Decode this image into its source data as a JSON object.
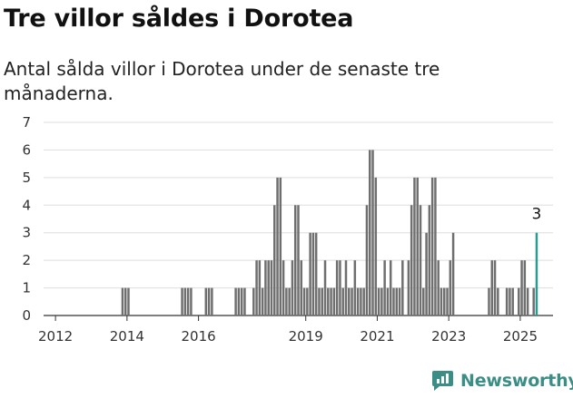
{
  "title": "Tre villor såldes i Dorotea",
  "subtitle": "Antal sålda villor i Dorotea under de senaste tre månaderna.",
  "brand": "Newsworthy",
  "colors": {
    "bar": "#6f6f6f",
    "highlight": "#2a9c8f",
    "grid": "#dddddd",
    "brand": "#3a8e86"
  },
  "chart_data": {
    "type": "bar",
    "title": "Tre villor såldes i Dorotea",
    "subtitle": "Antal sålda villor i Dorotea under de senaste tre månaderna.",
    "xlabel": "",
    "ylabel": "",
    "ylim": [
      0,
      7
    ],
    "yticks": [
      0,
      1,
      2,
      3,
      4,
      5,
      6,
      7
    ],
    "xlim": [
      "2011-09",
      "2025-12"
    ],
    "xticks": [
      "2012",
      "2014",
      "2016",
      "2019",
      "2021",
      "2023",
      "2025"
    ],
    "grid": true,
    "value_label": {
      "x": "2025-06",
      "text": "3"
    },
    "series": [
      {
        "x": [
          "2013-11",
          "2013-12",
          "2014-01",
          "2015-07",
          "2015-08",
          "2015-09",
          "2015-10",
          "2016-03",
          "2016-04",
          "2016-05",
          "2017-01",
          "2017-02",
          "2017-03",
          "2017-04",
          "2017-07",
          "2017-08",
          "2017-09",
          "2017-10",
          "2017-11",
          "2017-12",
          "2018-01",
          "2018-02",
          "2018-03",
          "2018-04",
          "2018-05",
          "2018-06",
          "2018-07",
          "2018-08",
          "2018-09",
          "2018-10",
          "2018-11",
          "2018-12",
          "2019-01",
          "2019-02",
          "2019-03",
          "2019-04",
          "2019-05",
          "2019-06",
          "2019-07",
          "2019-08",
          "2019-09",
          "2019-10",
          "2019-11",
          "2019-12",
          "2020-01",
          "2020-02",
          "2020-03",
          "2020-04",
          "2020-05",
          "2020-06",
          "2020-07",
          "2020-08",
          "2020-09",
          "2020-10",
          "2020-11",
          "2020-12",
          "2021-01",
          "2021-02",
          "2021-03",
          "2021-04",
          "2021-05",
          "2021-06",
          "2021-07",
          "2021-08",
          "2021-09",
          "2021-11",
          "2021-12",
          "2022-01",
          "2022-02",
          "2022-03",
          "2022-04",
          "2022-05",
          "2022-06",
          "2022-07",
          "2022-08",
          "2022-09",
          "2022-10",
          "2022-11",
          "2022-12",
          "2023-01",
          "2023-02",
          "2024-02",
          "2024-03",
          "2024-04",
          "2024-05",
          "2024-08",
          "2024-09",
          "2024-10",
          "2024-12",
          "2025-01",
          "2025-02",
          "2025-03",
          "2025-05",
          "2025-06"
        ],
        "values": [
          1,
          1,
          1,
          1,
          1,
          1,
          1,
          1,
          1,
          1,
          1,
          1,
          1,
          1,
          1,
          2,
          2,
          1,
          2,
          2,
          2,
          4,
          5,
          5,
          2,
          1,
          1,
          2,
          4,
          4,
          2,
          1,
          1,
          3,
          3,
          3,
          1,
          1,
          2,
          1,
          1,
          1,
          2,
          2,
          1,
          2,
          1,
          1,
          2,
          1,
          1,
          1,
          4,
          6,
          6,
          5,
          1,
          1,
          2,
          1,
          2,
          1,
          1,
          1,
          2,
          2,
          4,
          5,
          5,
          4,
          1,
          3,
          4,
          5,
          5,
          2,
          1,
          1,
          1,
          2,
          3,
          1,
          2,
          2,
          1,
          1,
          1,
          1,
          1,
          2,
          2,
          1,
          1,
          3
        ]
      }
    ]
  }
}
